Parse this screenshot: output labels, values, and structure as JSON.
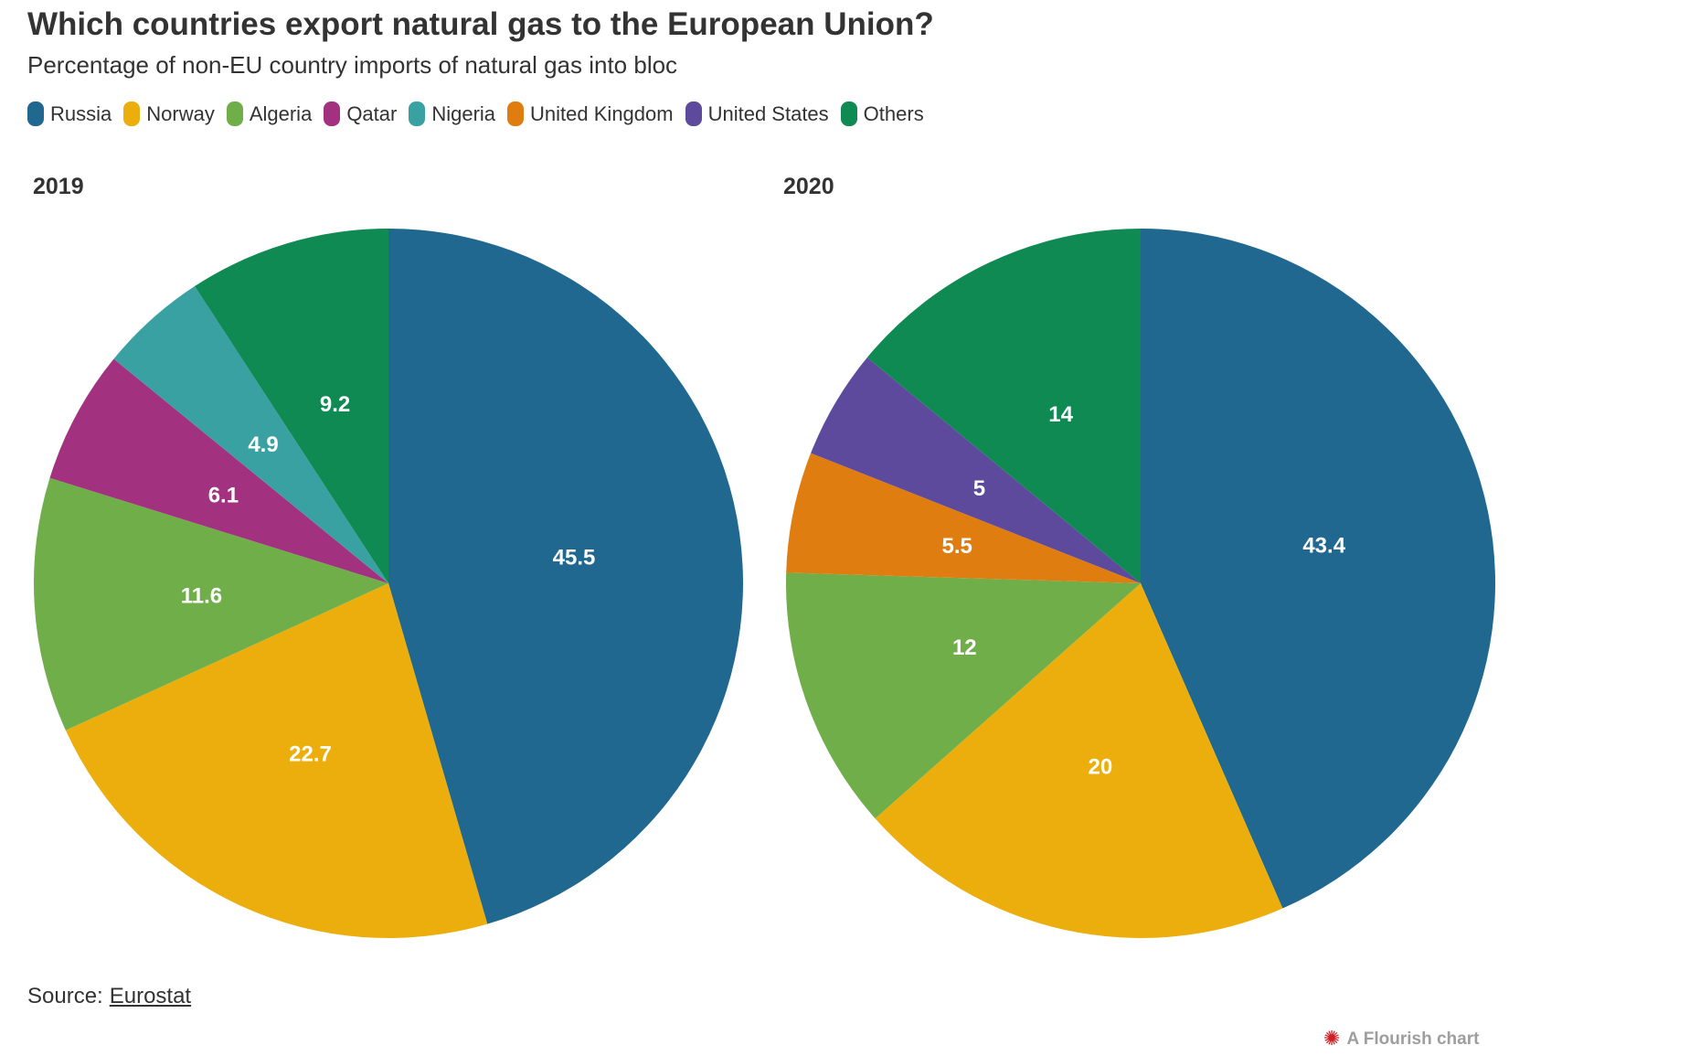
{
  "title": "Which countries export natural gas to the European Union?",
  "subtitle": "Percentage of non-EU country imports of natural gas into bloc",
  "legend": {
    "items": [
      {
        "label": "Russia",
        "color": "#20688f"
      },
      {
        "label": "Norway",
        "color": "#ecae0d"
      },
      {
        "label": "Algeria",
        "color": "#6fae49"
      },
      {
        "label": "Qatar",
        "color": "#a23280"
      },
      {
        "label": "Nigeria",
        "color": "#3aa1a3"
      },
      {
        "label": "United Kingdom",
        "color": "#e07d10"
      },
      {
        "label": "United States",
        "color": "#5e4a9d"
      },
      {
        "label": "Others",
        "color": "#0f8a52"
      }
    ]
  },
  "chart_data": [
    {
      "type": "pie",
      "title": "2019",
      "unit": "percent",
      "direction": "clockwise-from-top",
      "slices": [
        {
          "label": "Russia",
          "value": 45.5,
          "display": "45.5"
        },
        {
          "label": "Norway",
          "value": 22.7,
          "display": "22.7"
        },
        {
          "label": "Algeria",
          "value": 11.6,
          "display": "11.6"
        },
        {
          "label": "Qatar",
          "value": 6.1,
          "display": "6.1"
        },
        {
          "label": "Nigeria",
          "value": 4.9,
          "display": "4.9"
        },
        {
          "label": "Others",
          "value": 9.2,
          "display": "9.2"
        }
      ]
    },
    {
      "type": "pie",
      "title": "2020",
      "unit": "percent",
      "direction": "clockwise-from-top",
      "slices": [
        {
          "label": "Russia",
          "value": 43.4,
          "display": "43.4"
        },
        {
          "label": "Norway",
          "value": 20,
          "display": "20"
        },
        {
          "label": "Algeria",
          "value": 12,
          "display": "12"
        },
        {
          "label": "United Kingdom",
          "value": 5.5,
          "display": "5.5"
        },
        {
          "label": "United States",
          "value": 5,
          "display": "5"
        },
        {
          "label": "Others",
          "value": 14,
          "display": "14"
        }
      ]
    }
  ],
  "source": {
    "prefix": "Source:",
    "link_label": "Eurostat"
  },
  "credit": {
    "label": "A Flourish chart",
    "icon": "flourish-starburst",
    "icon_color": "#cc2027"
  }
}
